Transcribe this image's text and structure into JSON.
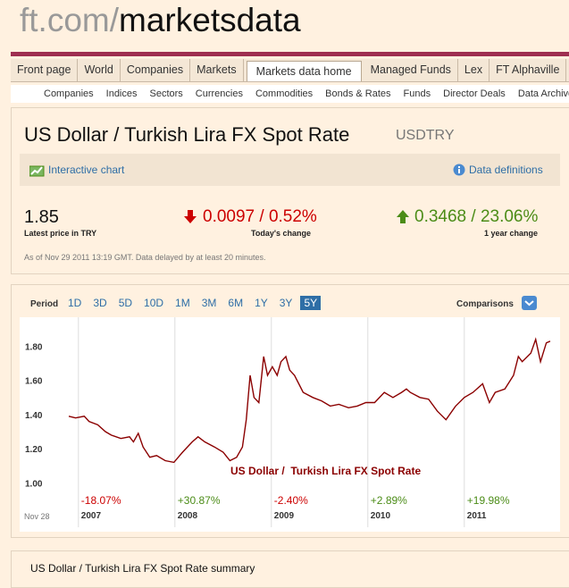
{
  "header": {
    "logo_prefix": "ft.com/",
    "logo_main": "marketsdata"
  },
  "nav": {
    "primary": [
      "Front page",
      "World",
      "Companies",
      "Markets",
      "Markets data home",
      "Managed Funds",
      "Lex",
      "FT Alphaville",
      "C"
    ],
    "primary_active": 4,
    "secondary": [
      "Companies",
      "Indices",
      "Sectors",
      "Currencies",
      "Commodities",
      "Bonds & Rates",
      "Funds",
      "Director Deals",
      "Data Archive"
    ]
  },
  "quote": {
    "title": "US Dollar / Turkish Lira FX Spot Rate",
    "symbol": "USDTRY",
    "tools": {
      "chart": "Interactive chart",
      "definitions": "Data definitions"
    },
    "price": "1.85",
    "price_label": "Latest price in TRY",
    "change": "0.0097 / 0.52%",
    "change_label": "Today's change",
    "year_change": "0.3468 / 23.06%",
    "year_change_label": "1 year change",
    "note": "As of Nov 29 2011 13:19 GMT. Data delayed by at least 20 minutes."
  },
  "chart_controls": {
    "period_label": "Period",
    "periods": [
      "1D",
      "3D",
      "5D",
      "10D",
      "1M",
      "3M",
      "6M",
      "1Y",
      "3Y",
      "5Y"
    ],
    "active_period": 9,
    "comparisons": "Comparisons"
  },
  "chart_data": {
    "type": "line",
    "start_label": "Nov 28",
    "x": [
      2006.9,
      2006.97,
      2007.06,
      2007.11,
      2007.2,
      2007.28,
      2007.34,
      2007.44,
      2007.53,
      2007.57,
      2007.62,
      2007.67,
      2007.74,
      2007.81,
      2007.9,
      2007.99,
      2008.08,
      2008.18,
      2008.24,
      2008.31,
      2008.41,
      2008.5,
      2008.57,
      2008.64,
      2008.7,
      2008.74,
      2008.78,
      2008.82,
      2008.87,
      2008.92,
      2008.96,
      2009.01,
      2009.06,
      2009.1,
      2009.15,
      2009.19,
      2009.24,
      2009.33,
      2009.43,
      2009.52,
      2009.61,
      2009.7,
      2009.8,
      2009.89,
      2009.98,
      2010.07,
      2010.17,
      2010.26,
      2010.35,
      2010.4,
      2010.44,
      2010.54,
      2010.63,
      2010.72,
      2010.81,
      2010.91,
      2011.0,
      2011.09,
      2011.19,
      2011.26,
      2011.32,
      2011.42,
      2011.51,
      2011.56,
      2011.6,
      2011.69,
      2011.74,
      2011.79,
      2011.85,
      2011.89
    ],
    "series": [
      {
        "name": "US Dollar /  Turkish Lira FX Spot Rate",
        "color": "#8b0000",
        "values": [
          1.39,
          1.38,
          1.39,
          1.36,
          1.34,
          1.3,
          1.28,
          1.26,
          1.27,
          1.24,
          1.29,
          1.21,
          1.15,
          1.16,
          1.13,
          1.12,
          1.18,
          1.24,
          1.27,
          1.24,
          1.21,
          1.18,
          1.13,
          1.15,
          1.21,
          1.37,
          1.63,
          1.5,
          1.47,
          1.74,
          1.63,
          1.68,
          1.63,
          1.71,
          1.74,
          1.66,
          1.63,
          1.53,
          1.5,
          1.48,
          1.45,
          1.46,
          1.44,
          1.45,
          1.47,
          1.47,
          1.53,
          1.5,
          1.53,
          1.55,
          1.53,
          1.5,
          1.49,
          1.42,
          1.37,
          1.45,
          1.5,
          1.53,
          1.58,
          1.47,
          1.53,
          1.55,
          1.63,
          1.74,
          1.71,
          1.76,
          1.84,
          1.71,
          1.82,
          1.83
        ]
      }
    ],
    "xlim": [
      2006.9,
      2011.9
    ],
    "xticks": [
      2007,
      2008,
      2009,
      2010,
      2011
    ],
    "ylim": [
      0.96,
      1.97
    ],
    "yticks": [
      {
        "value": 1.0,
        "label": "1.00"
      },
      {
        "value": 1.2,
        "label": "1.20"
      },
      {
        "value": 1.4,
        "label": "1.40"
      },
      {
        "value": 1.6,
        "label": "1.60"
      },
      {
        "value": 1.8,
        "label": "1.80"
      }
    ],
    "annual_changes": [
      "-18.07%",
      "+30.87%",
      "-2.40%",
      "+2.89%",
      "+19.98%"
    ],
    "grid": true
  },
  "summary": {
    "title": "US Dollar / Turkish Lira FX Spot Rate summary"
  }
}
